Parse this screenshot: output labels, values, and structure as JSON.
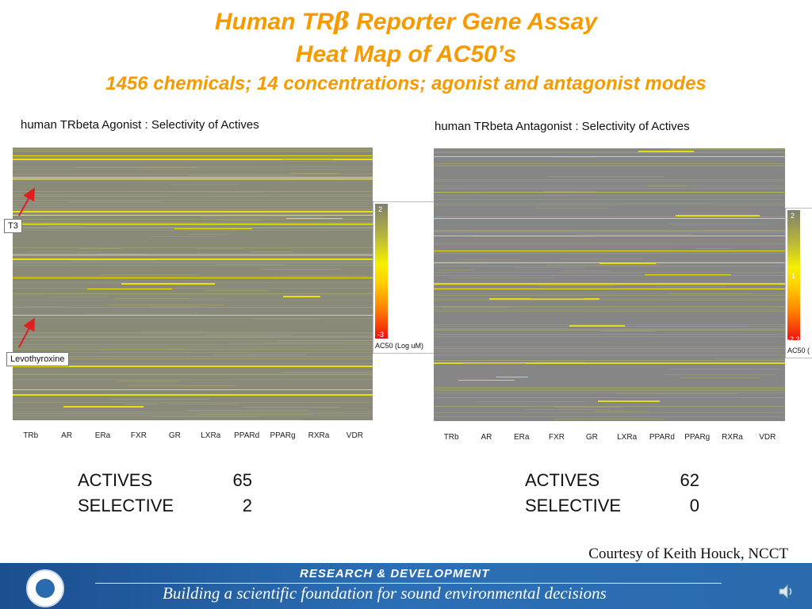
{
  "slide": {
    "title_prefix": "Human TR",
    "title_symbol": "β",
    "title_suffix": " Reporter Gene Assay",
    "subtitle": "Heat Map of AC50’s",
    "subtitle2": "1456 chemicals; 14 concentrations;  agonist and antagonist modes",
    "courtesy": "Courtesy of Keith Houck, NCCT"
  },
  "left_panel": {
    "title": "human TRbeta Agonist :  Selectivity of Actives",
    "columns": [
      "TRb",
      "AR",
      "ERa",
      "FXR",
      "GR",
      "LXRa",
      "PPARd",
      "PPARg",
      "RXRa",
      "VDR"
    ],
    "legend": {
      "top": "2",
      "bottom": "-3",
      "caption": "AC50 (Log uM)"
    },
    "callouts": [
      "T3",
      "Levothyroxine"
    ],
    "stats": [
      {
        "label": "ACTIVES",
        "value": "65"
      },
      {
        "label": "SELECTIVE",
        "value": "2"
      }
    ]
  },
  "right_panel": {
    "title": "human TRbeta Antagonist : Selectivity of Actives",
    "columns": [
      "TRb",
      "AR",
      "ERa",
      "FXR",
      "GR",
      "LXRa",
      "PPARd",
      "PPARg",
      "RXRa",
      "VDR"
    ],
    "legend": {
      "top": "2",
      "mid": "1",
      "bottom": "-2.3",
      "caption": "AC50 ("
    },
    "stats": [
      {
        "label": "ACTIVES",
        "value": "62"
      },
      {
        "label": "SELECTIVE",
        "value": "0"
      }
    ]
  },
  "footer": {
    "top": "RESEARCH &  DEVELOPMENT",
    "bottom": "Building a scientific foundation for sound environmental decisions"
  },
  "colors": {
    "title": "#f59a00",
    "heatmap_left": "#8a8a78",
    "heatmap_right": "#868686",
    "highlight": "#f3ea00",
    "footer": "#2a6aad"
  }
}
